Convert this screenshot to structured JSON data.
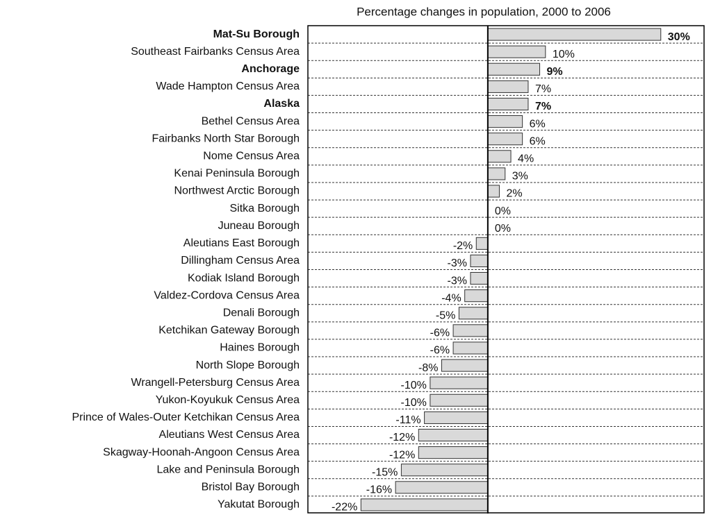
{
  "chart_data": {
    "type": "hbar",
    "title": "Percentage changes in population, 2000 to 2006",
    "categories": [
      "Mat-Su Borough",
      "Southeast Fairbanks Census Area",
      "Anchorage",
      "Wade Hampton Census Area",
      "Alaska",
      "Bethel Census Area",
      "Fairbanks North Star Borough",
      "Nome Census Area",
      "Kenai Peninsula Borough",
      "Northwest Arctic Borough",
      "Sitka Borough",
      "Juneau Borough",
      "Aleutians East Borough",
      "Dillingham Census Area",
      "Kodiak Island Borough",
      "Valdez-Cordova Census Area",
      "Denali Borough",
      "Ketchikan Gateway Borough",
      "Haines Borough",
      "North Slope Borough",
      "Wrangell-Petersburg Census Area",
      "Yukon-Koyukuk Census Area",
      "Prince of Wales-Outer Ketchikan Census Area",
      "Aleutians West Census Area",
      "Skagway-Hoonah-Angoon Census Area",
      "Lake and Peninsula Borough",
      "Bristol Bay Borough",
      "Yakutat Borough"
    ],
    "values": [
      30,
      10,
      9,
      7,
      7,
      6,
      6,
      4,
      3,
      2,
      0,
      0,
      -2,
      -3,
      -3,
      -4,
      -5,
      -6,
      -6,
      -8,
      -10,
      -10,
      -11,
      -12,
      -12,
      -15,
      -16,
      -22
    ],
    "value_labels": [
      "30%",
      "10%",
      "9%",
      "7%",
      "7%",
      "6%",
      "6%",
      "4%",
      "3%",
      "2%",
      "0%",
      "0%",
      "-2%",
      "-3%",
      "-3%",
      "-4%",
      "-5%",
      "-6%",
      "-6%",
      "-8%",
      "-10%",
      "-10%",
      "-11%",
      "-12%",
      "-12%",
      "-15%",
      "-16%",
      "-22%"
    ],
    "bold": [
      0,
      2,
      4
    ],
    "color": "#d9d9d9",
    "xlim": [
      -31.2,
      37.5
    ]
  }
}
